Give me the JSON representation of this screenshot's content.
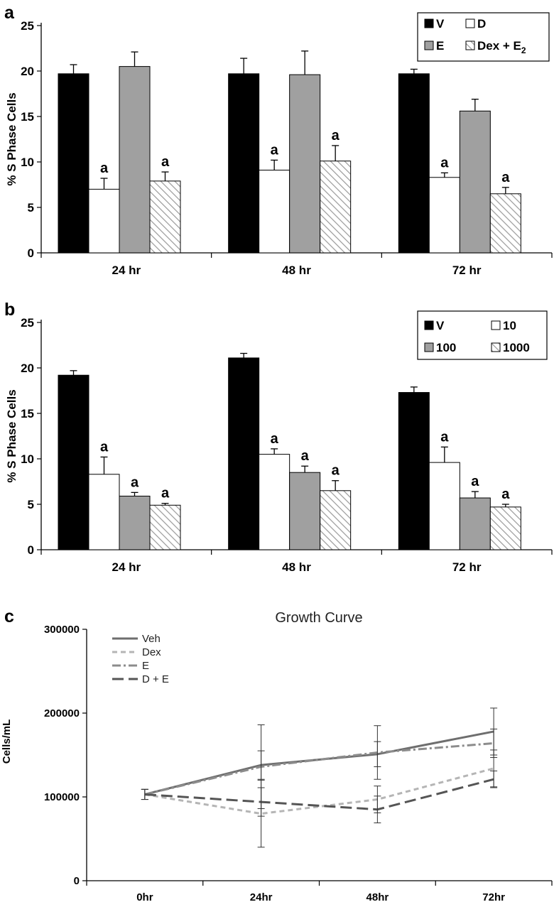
{
  "colors": {
    "V": "#000000",
    "D": "#ffffff",
    "E": "#a0a0a0",
    "hatch": "#9a9a9a",
    "Veh": "#6e6e6e",
    "Dex": "#b5b5b5",
    "E_line": "#8c8c8c",
    "DE": "#555555"
  },
  "chart_data": [
    {
      "id": "a",
      "panel_label": "a",
      "type": "bar",
      "title": "",
      "xlabel": "",
      "ylabel": "% S Phase Cells",
      "ylim": [
        0,
        25
      ],
      "yticks": [
        "0",
        "5",
        "10",
        "15",
        "20",
        "25"
      ],
      "categories": [
        "24 hr",
        "48 hr",
        "72 hr"
      ],
      "legend": {
        "placement": "top-right",
        "entries": [
          {
            "key": "V",
            "label": "V",
            "sub": ""
          },
          {
            "key": "D",
            "label": "D",
            "sub": ""
          },
          {
            "key": "E",
            "label": "E",
            "sub": ""
          },
          {
            "key": "H",
            "label": "Dex + E",
            "sub": "2"
          }
        ]
      },
      "series": [
        {
          "name": "V",
          "fill": "solid-black",
          "values": [
            19.7,
            19.7,
            19.7
          ],
          "errors": [
            1.0,
            1.7,
            0.5
          ],
          "annotations": [
            "",
            "",
            ""
          ]
        },
        {
          "name": "D",
          "fill": "white",
          "values": [
            7.0,
            9.1,
            8.3
          ],
          "errors": [
            1.2,
            1.1,
            0.5
          ],
          "annotations": [
            "a",
            "a",
            "a"
          ]
        },
        {
          "name": "E",
          "fill": "gray",
          "values": [
            20.5,
            19.6,
            15.6
          ],
          "errors": [
            1.6,
            2.6,
            1.3
          ],
          "annotations": [
            "",
            "",
            ""
          ]
        },
        {
          "name": "Dex + E2",
          "fill": "hatched",
          "values": [
            7.9,
            10.1,
            6.5
          ],
          "errors": [
            1.0,
            1.7,
            0.7
          ],
          "annotations": [
            "a",
            "a",
            "a"
          ]
        }
      ]
    },
    {
      "id": "b",
      "panel_label": "b",
      "type": "bar",
      "title": "",
      "xlabel": "",
      "ylabel": "% S Phase Cells",
      "ylim": [
        0,
        25
      ],
      "yticks": [
        "0",
        "5",
        "10",
        "15",
        "20",
        "25"
      ],
      "categories": [
        "24 hr",
        "48 hr",
        "72 hr"
      ],
      "legend": {
        "placement": "top-right",
        "entries": [
          {
            "key": "V",
            "label": "V",
            "sub": ""
          },
          {
            "key": "D",
            "label": "10",
            "sub": ""
          },
          {
            "key": "E",
            "label": "100",
            "sub": ""
          },
          {
            "key": "H",
            "label": "1000",
            "sub": ""
          }
        ]
      },
      "series": [
        {
          "name": "V",
          "fill": "solid-black",
          "values": [
            19.2,
            21.1,
            17.3
          ],
          "errors": [
            0.5,
            0.5,
            0.6
          ],
          "annotations": [
            "",
            "",
            ""
          ]
        },
        {
          "name": "10",
          "fill": "white",
          "values": [
            8.3,
            10.5,
            9.6
          ],
          "errors": [
            1.9,
            0.6,
            1.7
          ],
          "annotations": [
            "a",
            "a",
            "a"
          ]
        },
        {
          "name": "100",
          "fill": "gray",
          "values": [
            5.9,
            8.5,
            5.7
          ],
          "errors": [
            0.4,
            0.7,
            0.7
          ],
          "annotations": [
            "a",
            "a",
            "a"
          ]
        },
        {
          "name": "1000",
          "fill": "hatched",
          "values": [
            4.9,
            6.5,
            4.7
          ],
          "errors": [
            0.2,
            1.1,
            0.3
          ],
          "annotations": [
            "a",
            "a",
            "a"
          ]
        }
      ]
    },
    {
      "id": "c",
      "panel_label": "c",
      "type": "line",
      "title": "Growth Curve",
      "xlabel": "",
      "ylabel": "Cells/mL",
      "ylim": [
        0,
        300000
      ],
      "yticks": [
        "0",
        "100000",
        "200000",
        "300000"
      ],
      "x": [
        "0hr",
        "24hr",
        "48hr",
        "72hr"
      ],
      "legend": {
        "placement": "top-left",
        "entries": [
          "Veh",
          "Dex",
          "E",
          "D + E"
        ]
      },
      "series": [
        {
          "name": "Veh",
          "style": "solid",
          "values": [
            103000,
            138000,
            151000,
            178000
          ],
          "errors": [
            6000,
            17000,
            15000,
            28000
          ]
        },
        {
          "name": "Dex",
          "style": "short-dash",
          "values": [
            103000,
            80000,
            97000,
            134000
          ],
          "errors": [
            6000,
            40000,
            16000,
            22000
          ]
        },
        {
          "name": "E",
          "style": "dash-dot",
          "values": [
            103000,
            136000,
            153000,
            164000
          ],
          "errors": [
            6000,
            50000,
            32000,
            17000
          ]
        },
        {
          "name": "D + E",
          "style": "long-dash",
          "values": [
            103000,
            94000,
            85000,
            121000
          ],
          "errors": [
            6000,
            17000,
            16000,
            10000
          ]
        }
      ]
    }
  ]
}
